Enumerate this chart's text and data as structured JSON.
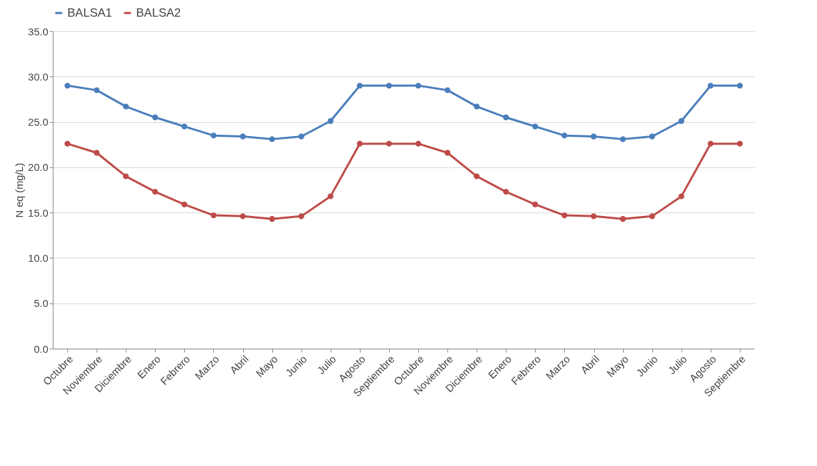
{
  "chart_data": {
    "type": "line",
    "ylabel": "N eq (mg/L)",
    "categories": [
      "Octubre",
      "Noviembre",
      "Diciembre",
      "Enero",
      "Febrero",
      "Marzo",
      "Abril",
      "Mayo",
      "Junio",
      "Julio",
      "Agosto",
      "Septiembre",
      "Octubre",
      "Noviembre",
      "Diciembre",
      "Enero",
      "Febrero",
      "Marzo",
      "Abril",
      "Mayo",
      "Junio",
      "Julio",
      "Agosto",
      "Septiembre"
    ],
    "series": [
      {
        "name": "BALSA1",
        "color": "#4a7ebb",
        "values": [
          29.0,
          28.5,
          26.7,
          25.5,
          24.5,
          23.5,
          23.4,
          23.1,
          23.4,
          25.1,
          29.0,
          29.0,
          29.0,
          28.5,
          26.7,
          25.5,
          24.5,
          23.5,
          23.4,
          23.1,
          23.4,
          25.1,
          29.0,
          29.0
        ]
      },
      {
        "name": "BALSA2",
        "color": "#be4b48",
        "values": [
          22.6,
          21.6,
          19.0,
          17.3,
          15.9,
          14.7,
          14.6,
          14.3,
          14.6,
          16.8,
          22.6,
          22.6,
          22.6,
          21.6,
          19.0,
          17.3,
          15.9,
          14.7,
          14.6,
          14.3,
          14.6,
          16.8,
          22.6,
          22.6
        ]
      }
    ],
    "ylim": [
      0,
      35
    ],
    "yticks": [
      {
        "value": 0,
        "label": "0.0"
      },
      {
        "value": 5,
        "label": "5.0"
      },
      {
        "value": 10,
        "label": "10.0"
      },
      {
        "value": 15,
        "label": "15.0"
      },
      {
        "value": 20,
        "label": "20.0"
      },
      {
        "value": 25,
        "label": "25.0"
      },
      {
        "value": 30,
        "label": "30.0"
      },
      {
        "value": 35,
        "label": "35.0"
      }
    ],
    "grid": "y",
    "legend": "top",
    "marker": "circle",
    "line_style": "solid"
  }
}
